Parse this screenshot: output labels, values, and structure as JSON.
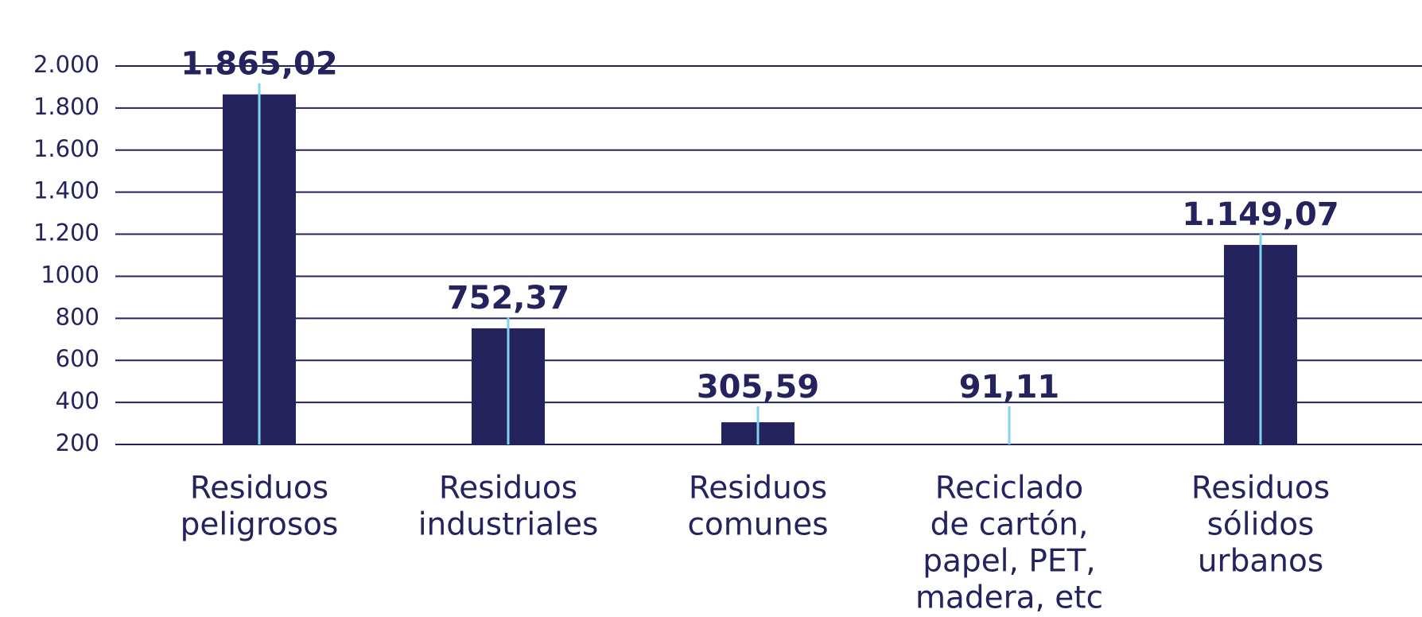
{
  "chart_data": {
    "type": "bar",
    "categories": [
      [
        "Residuos",
        "peligrosos"
      ],
      [
        "Residuos",
        "industriales"
      ],
      [
        "Residuos",
        "comunes"
      ],
      [
        "Reciclado",
        "de cartón,",
        "papel, PET,",
        "madera, etc"
      ],
      [
        "Residuos",
        "sólidos",
        "urbanos"
      ]
    ],
    "values": [
      1865.02,
      752.37,
      305.59,
      91.11,
      1149.07
    ],
    "value_labels": [
      "1.865,02",
      "752,37",
      "305,59",
      "91,11",
      "1.149,07"
    ],
    "color": "#25235e",
    "ylim": [
      200,
      2000
    ],
    "yticks": [
      200,
      400,
      600,
      800,
      1000,
      {
        "value": 1200,
        "label": "1.200"
      },
      {
        "value": 1400,
        "label": "1.400"
      },
      {
        "value": 1600,
        "label": "1.600"
      },
      {
        "value": 1800,
        "label": "1.800"
      },
      {
        "value": 2000,
        "label": "2.000"
      }
    ],
    "grid": true
  }
}
